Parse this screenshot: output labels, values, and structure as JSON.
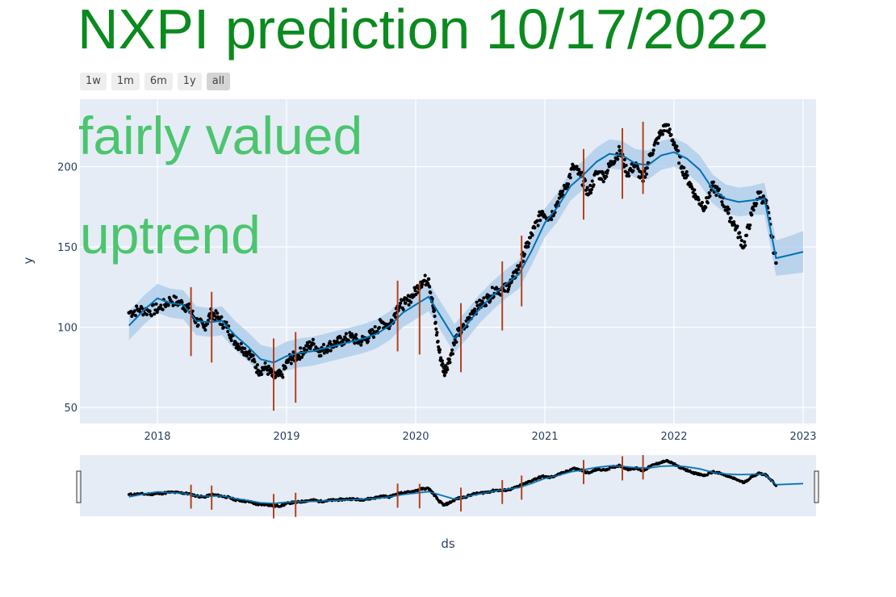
{
  "title": "NXPI prediction 10/17/2022",
  "annotations": [
    "fairly valued",
    "uptrend"
  ],
  "range_selector": [
    {
      "label": "1w",
      "active": false
    },
    {
      "label": "1m",
      "active": false
    },
    {
      "label": "6m",
      "active": false
    },
    {
      "label": "1y",
      "active": false
    },
    {
      "label": "all",
      "active": true
    }
  ],
  "colors": {
    "plot_bg": "#e5ecf6",
    "points": "#000000",
    "trend": "#0072b2",
    "band": "#a9cbe9",
    "changepoints": "#b3431f",
    "title": "#0b8a1f",
    "annotation": "#4cc56e"
  },
  "chart_data": {
    "type": "line",
    "xlabel": "ds",
    "ylabel": "y",
    "xlim": [
      2017.4,
      2023.1
    ],
    "ylim": [
      40,
      242
    ],
    "x_ticks": [
      {
        "value": 2018,
        "label": "2018"
      },
      {
        "value": 2019,
        "label": "2019"
      },
      {
        "value": 2020,
        "label": "2020"
      },
      {
        "value": 2021,
        "label": "2021"
      },
      {
        "value": 2022,
        "label": "2022"
      },
      {
        "value": 2023,
        "label": "2023"
      }
    ],
    "y_ticks": [
      {
        "value": 50,
        "label": "50"
      },
      {
        "value": 100,
        "label": "100"
      },
      {
        "value": 150,
        "label": "150"
      },
      {
        "value": 200,
        "label": "200"
      }
    ],
    "grid": true,
    "series": [
      {
        "kind": "forecast",
        "x": [
          2017.78,
          2017.9,
          2018.0,
          2018.1,
          2018.2,
          2018.3,
          2018.4,
          2018.5,
          2018.6,
          2018.7,
          2018.8,
          2018.9,
          2019.0,
          2019.1,
          2019.2,
          2019.3,
          2019.4,
          2019.5,
          2019.6,
          2019.7,
          2019.8,
          2019.9,
          2020.0,
          2020.1,
          2020.2,
          2020.3,
          2020.4,
          2020.5,
          2020.6,
          2020.7,
          2020.8,
          2020.9,
          2021.0,
          2021.1,
          2021.2,
          2021.3,
          2021.4,
          2021.5,
          2021.6,
          2021.7,
          2021.8,
          2021.9,
          2022.0,
          2022.1,
          2022.2,
          2022.3,
          2022.4,
          2022.5,
          2022.6,
          2022.7,
          2022.79,
          2022.9,
          2023.0
        ],
        "y": [
          101,
          111,
          118,
          115,
          114,
          104,
          103,
          104,
          95,
          88,
          80,
          78,
          82,
          84,
          85,
          87,
          89,
          91,
          93,
          96,
          101,
          109,
          114,
          119,
          106,
          93,
          102,
          112,
          120,
          127,
          133,
          148,
          165,
          175,
          188,
          195,
          203,
          208,
          207,
          202,
          201,
          207,
          209,
          205,
          198,
          186,
          180,
          178,
          179,
          180,
          143,
          145,
          147
        ]
      },
      {
        "kind": "observed",
        "x": [
          2017.78,
          2017.86,
          2017.94,
          2018.02,
          2018.1,
          2018.18,
          2018.24,
          2018.3,
          2018.36,
          2018.42,
          2018.48,
          2018.54,
          2018.6,
          2018.66,
          2018.72,
          2018.78,
          2018.84,
          2018.9,
          2018.96,
          2019.02,
          2019.08,
          2019.14,
          2019.2,
          2019.26,
          2019.32,
          2019.38,
          2019.44,
          2019.5,
          2019.56,
          2019.62,
          2019.68,
          2019.74,
          2019.8,
          2019.86,
          2019.92,
          2019.98,
          2020.04,
          2020.1,
          2020.14,
          2020.18,
          2020.22,
          2020.26,
          2020.32,
          2020.38,
          2020.44,
          2020.5,
          2020.56,
          2020.62,
          2020.68,
          2020.74,
          2020.8,
          2020.86,
          2020.92,
          2020.98,
          2021.04,
          2021.1,
          2021.16,
          2021.22,
          2021.28,
          2021.34,
          2021.4,
          2021.46,
          2021.52,
          2021.58,
          2021.64,
          2021.7,
          2021.76,
          2021.82,
          2021.88,
          2021.94,
          2022.0,
          2022.06,
          2022.12,
          2022.18,
          2022.24,
          2022.3,
          2022.36,
          2022.42,
          2022.48,
          2022.54,
          2022.6,
          2022.66,
          2022.72,
          2022.79
        ],
        "y": [
          109,
          111,
          110,
          112,
          117,
          115,
          112,
          104,
          100,
          109,
          105,
          100,
          91,
          87,
          83,
          73,
          75,
          69,
          70,
          80,
          82,
          86,
          90,
          85,
          88,
          90,
          92,
          94,
          91,
          93,
          97,
          103,
          101,
          113,
          115,
          120,
          128,
          130,
          110,
          86,
          72,
          80,
          95,
          100,
          110,
          114,
          118,
          124,
          123,
          128,
          138,
          150,
          162,
          172,
          168,
          178,
          187,
          200,
          194,
          183,
          196,
          194,
          203,
          210,
          196,
          201,
          191,
          208,
          218,
          226,
          215,
          200,
          190,
          180,
          175,
          188,
          182,
          171,
          162,
          150,
          170,
          184,
          175,
          140
        ]
      }
    ],
    "band": {
      "x": [
        2017.78,
        2017.9,
        2018.0,
        2018.1,
        2018.2,
        2018.3,
        2018.4,
        2018.5,
        2018.6,
        2018.7,
        2018.8,
        2018.9,
        2019.0,
        2019.1,
        2019.2,
        2019.3,
        2019.4,
        2019.5,
        2019.6,
        2019.7,
        2019.8,
        2019.9,
        2020.0,
        2020.1,
        2020.2,
        2020.3,
        2020.4,
        2020.5,
        2020.6,
        2020.7,
        2020.8,
        2020.9,
        2021.0,
        2021.1,
        2021.2,
        2021.3,
        2021.4,
        2021.5,
        2021.6,
        2021.7,
        2021.8,
        2021.9,
        2022.0,
        2022.1,
        2022.2,
        2022.3,
        2022.4,
        2022.5,
        2022.6,
        2022.7,
        2022.79,
        2022.9,
        2023.0
      ],
      "lower": [
        92,
        102,
        109,
        106,
        105,
        95,
        94,
        95,
        86,
        79,
        71,
        69,
        73,
        75,
        76,
        78,
        80,
        82,
        84,
        87,
        92,
        100,
        105,
        110,
        97,
        84,
        93,
        103,
        111,
        118,
        124,
        139,
        156,
        166,
        179,
        186,
        194,
        199,
        198,
        193,
        192,
        198,
        200,
        196,
        189,
        177,
        171,
        169,
        170,
        170,
        132,
        133,
        134
      ],
      "upper": [
        110,
        120,
        127,
        124,
        123,
        113,
        112,
        113,
        104,
        97,
        89,
        87,
        91,
        93,
        94,
        96,
        98,
        100,
        102,
        105,
        110,
        118,
        123,
        128,
        115,
        102,
        111,
        121,
        129,
        136,
        142,
        157,
        174,
        184,
        197,
        204,
        212,
        217,
        216,
        211,
        210,
        216,
        218,
        214,
        207,
        195,
        189,
        187,
        188,
        190,
        154,
        157,
        160
      ]
    },
    "changepoints": [
      {
        "x": 2018.26,
        "low": 82,
        "high": 125
      },
      {
        "x": 2018.42,
        "low": 78,
        "high": 122
      },
      {
        "x": 2018.9,
        "low": 48,
        "high": 93
      },
      {
        "x": 2019.07,
        "low": 53,
        "high": 97
      },
      {
        "x": 2019.86,
        "low": 85,
        "high": 129
      },
      {
        "x": 2020.03,
        "low": 83,
        "high": 128
      },
      {
        "x": 2020.35,
        "low": 72,
        "high": 115
      },
      {
        "x": 2020.67,
        "low": 98,
        "high": 141
      },
      {
        "x": 2020.82,
        "low": 113,
        "high": 157
      },
      {
        "x": 2021.3,
        "low": 167,
        "high": 211
      },
      {
        "x": 2021.6,
        "low": 180,
        "high": 224
      },
      {
        "x": 2021.76,
        "low": 183,
        "high": 228
      }
    ]
  }
}
